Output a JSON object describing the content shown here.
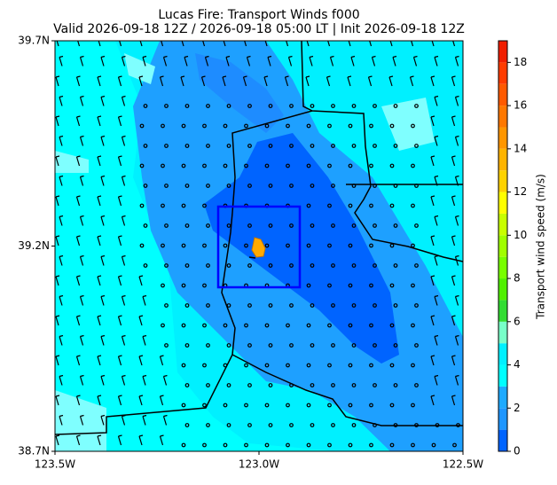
{
  "map": {
    "title": "Lucas Fire: Transport Winds f000",
    "subtitle": "Valid 2026-09-18 12Z / 2026-09-18 05:00 LT | Init 2026-09-18 12Z",
    "xlim": [
      -123.5,
      -122.5
    ],
    "xticks": [
      {
        "value": -123.5,
        "label": "123.5W"
      },
      {
        "value": -123.0,
        "label": "123.0W"
      },
      {
        "value": -122.5,
        "label": "122.5W"
      }
    ],
    "ylim": [
      38.7,
      39.7
    ],
    "yticks": [
      {
        "value": 38.7,
        "label": "38.7N"
      },
      {
        "value": 39.2,
        "label": "39.2N"
      },
      {
        "value": 39.7,
        "label": "39.7N"
      }
    ]
  },
  "colorbar": {
    "label": "Transport wind speed (m/s)",
    "lim": [
      0,
      19
    ],
    "ticks": [
      0,
      2,
      4,
      6,
      8,
      10,
      12,
      14,
      16,
      18
    ],
    "levels": [
      0,
      1,
      2,
      3,
      4,
      5,
      6,
      7,
      8,
      9,
      10,
      11,
      12,
      13,
      14,
      15,
      16,
      17,
      18,
      19
    ],
    "colors": [
      "#0064ff",
      "#1e96ff",
      "#1eaaff",
      "#00ffff",
      "#00f0ff",
      "#78ffc8",
      "#32dc32",
      "#50f000",
      "#78ff00",
      "#a0ff00",
      "#c8ff00",
      "#ffff00",
      "#ffd200",
      "#ffb400",
      "#ff9600",
      "#ff7800",
      "#ff5a00",
      "#ff3c00",
      "#f01e00"
    ]
  }
}
